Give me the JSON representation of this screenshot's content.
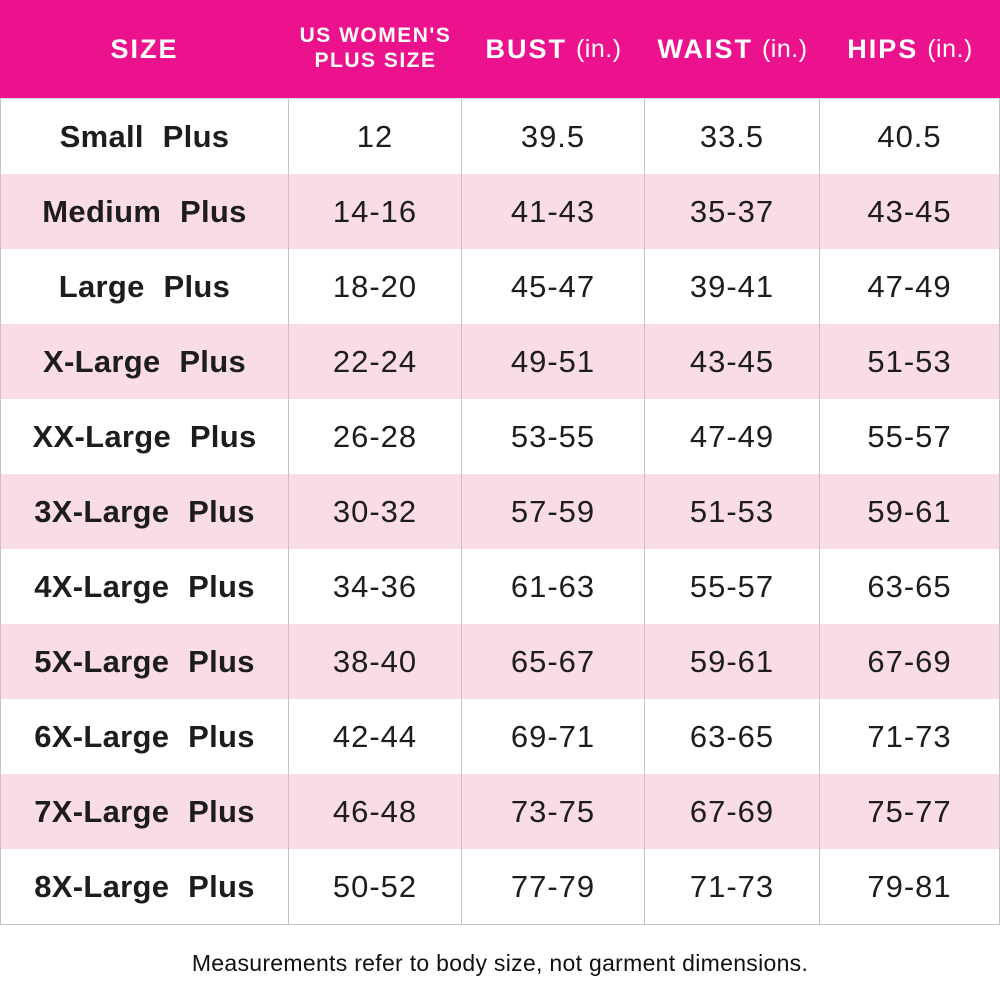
{
  "header": {
    "size_label": "SIZE",
    "plus_size_line1": "US WOMEN'S",
    "plus_size_line2": "PLUS SIZE",
    "bust_label": "BUST",
    "waist_label": "WAIST",
    "hips_label": "HIPS",
    "unit": "(in.)"
  },
  "chart_data": {
    "type": "table",
    "columns": [
      "SIZE",
      "US WOMEN'S PLUS SIZE",
      "BUST (in.)",
      "WAIST (in.)",
      "HIPS (in.)"
    ],
    "rows": [
      [
        "Small Plus",
        "12",
        "39.5",
        "33.5",
        "40.5"
      ],
      [
        "Medium Plus",
        "14-16",
        "41-43",
        "35-37",
        "43-45"
      ],
      [
        "Large Plus",
        "18-20",
        "45-47",
        "39-41",
        "47-49"
      ],
      [
        "X-Large Plus",
        "22-24",
        "49-51",
        "43-45",
        "51-53"
      ],
      [
        "XX-Large Plus",
        "26-28",
        "53-55",
        "47-49",
        "55-57"
      ],
      [
        "3X-Large Plus",
        "30-32",
        "57-59",
        "51-53",
        "59-61"
      ],
      [
        "4X-Large Plus",
        "34-36",
        "61-63",
        "55-57",
        "63-65"
      ],
      [
        "5X-Large Plus",
        "38-40",
        "65-67",
        "59-61",
        "67-69"
      ],
      [
        "6X-Large Plus",
        "42-44",
        "69-71",
        "63-65",
        "71-73"
      ],
      [
        "7X-Large Plus",
        "46-48",
        "73-75",
        "67-69",
        "75-77"
      ],
      [
        "8X-Large Plus",
        "50-52",
        "77-79",
        "71-73",
        "79-81"
      ]
    ],
    "title": "",
    "layout": {
      "zebra_striping": "odd rows white, even rows light pink",
      "header_position": "top"
    }
  },
  "footnote": "Measurements refer to body size, not garment dimensions.",
  "colors": {
    "header_bg": "#EC118C",
    "row_alt_bg": "#FADCE9",
    "border": "#C4C4C4",
    "text": "#1D1D1D",
    "header_text": "#FFFFFF"
  }
}
